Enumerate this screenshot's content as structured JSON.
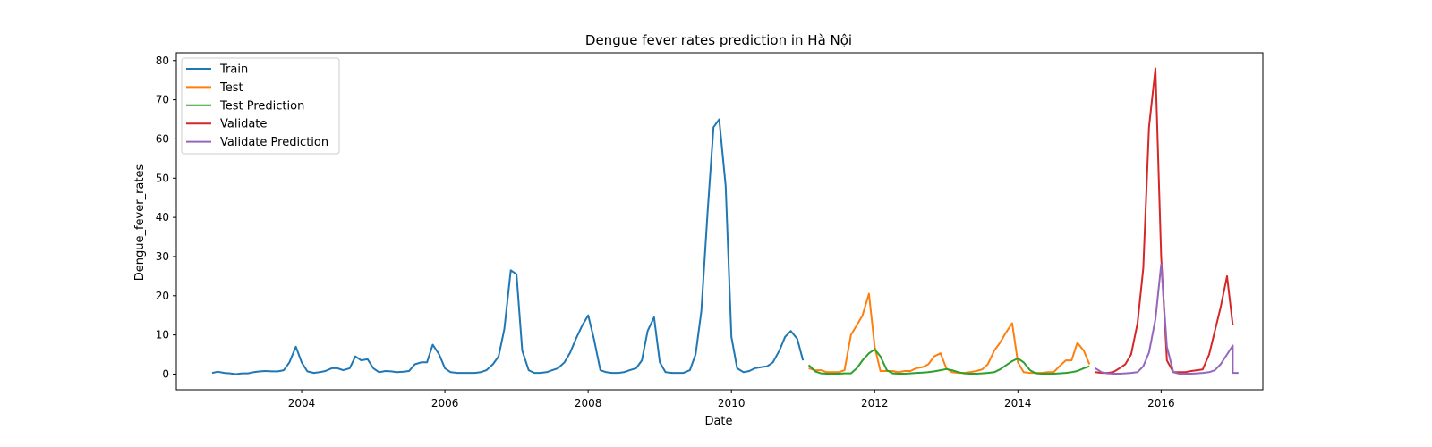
{
  "chart_data": {
    "type": "line",
    "title": "Dengue fever rates prediction in Hà Nội",
    "xlabel": "Date",
    "ylabel": "Dengue_fever_rates",
    "x_ticks": [
      "2004",
      "2006",
      "2008",
      "2010",
      "2012",
      "2014",
      "2016"
    ],
    "y_ticks": [
      0,
      10,
      20,
      30,
      40,
      50,
      60,
      70,
      80
    ],
    "xlim": [
      2002.25,
      2017.42
    ],
    "ylim": [
      -4,
      82
    ],
    "grid": false,
    "legend_position": "top-left",
    "series": [
      {
        "name": "Train",
        "color": "#1f77b4",
        "points": [
          [
            2002.75,
            0.3
          ],
          [
            2002.83,
            0.6
          ],
          [
            2002.92,
            0.3
          ],
          [
            2003.0,
            0.2
          ],
          [
            2003.08,
            0.0
          ],
          [
            2003.17,
            0.2
          ],
          [
            2003.25,
            0.2
          ],
          [
            2003.33,
            0.5
          ],
          [
            2003.42,
            0.7
          ],
          [
            2003.5,
            0.8
          ],
          [
            2003.58,
            0.7
          ],
          [
            2003.67,
            0.7
          ],
          [
            2003.75,
            1.0
          ],
          [
            2003.83,
            3.0
          ],
          [
            2003.92,
            7.0
          ],
          [
            2004.0,
            3.0
          ],
          [
            2004.08,
            0.7
          ],
          [
            2004.17,
            0.3
          ],
          [
            2004.25,
            0.5
          ],
          [
            2004.33,
            0.8
          ],
          [
            2004.42,
            1.5
          ],
          [
            2004.5,
            1.5
          ],
          [
            2004.58,
            1.0
          ],
          [
            2004.67,
            1.5
          ],
          [
            2004.75,
            4.5
          ],
          [
            2004.83,
            3.5
          ],
          [
            2004.92,
            3.8
          ],
          [
            2005.0,
            1.5
          ],
          [
            2005.08,
            0.5
          ],
          [
            2005.17,
            0.8
          ],
          [
            2005.25,
            0.7
          ],
          [
            2005.33,
            0.5
          ],
          [
            2005.42,
            0.6
          ],
          [
            2005.5,
            0.8
          ],
          [
            2005.58,
            2.5
          ],
          [
            2005.67,
            3.0
          ],
          [
            2005.75,
            3.0
          ],
          [
            2005.83,
            7.5
          ],
          [
            2005.92,
            5.0
          ],
          [
            2006.0,
            1.5
          ],
          [
            2006.08,
            0.5
          ],
          [
            2006.17,
            0.3
          ],
          [
            2006.25,
            0.3
          ],
          [
            2006.33,
            0.3
          ],
          [
            2006.42,
            0.3
          ],
          [
            2006.5,
            0.5
          ],
          [
            2006.58,
            1.0
          ],
          [
            2006.67,
            2.5
          ],
          [
            2006.75,
            4.5
          ],
          [
            2006.83,
            11.5
          ],
          [
            2006.92,
            26.5
          ],
          [
            2007.0,
            25.5
          ],
          [
            2007.08,
            6.0
          ],
          [
            2007.17,
            1.0
          ],
          [
            2007.25,
            0.3
          ],
          [
            2007.33,
            0.3
          ],
          [
            2007.42,
            0.5
          ],
          [
            2007.5,
            1.0
          ],
          [
            2007.58,
            1.5
          ],
          [
            2007.67,
            3.0
          ],
          [
            2007.75,
            5.5
          ],
          [
            2007.83,
            9.0
          ],
          [
            2007.92,
            12.5
          ],
          [
            2008.0,
            15.0
          ],
          [
            2008.08,
            9.0
          ],
          [
            2008.17,
            1.0
          ],
          [
            2008.25,
            0.5
          ],
          [
            2008.33,
            0.3
          ],
          [
            2008.42,
            0.3
          ],
          [
            2008.5,
            0.5
          ],
          [
            2008.58,
            1.0
          ],
          [
            2008.67,
            1.5
          ],
          [
            2008.75,
            3.5
          ],
          [
            2008.83,
            11.0
          ],
          [
            2008.92,
            14.5
          ],
          [
            2009.0,
            3.0
          ],
          [
            2009.08,
            0.5
          ],
          [
            2009.17,
            0.3
          ],
          [
            2009.25,
            0.3
          ],
          [
            2009.33,
            0.3
          ],
          [
            2009.42,
            1.0
          ],
          [
            2009.5,
            5.0
          ],
          [
            2009.58,
            16.0
          ],
          [
            2009.67,
            42.0
          ],
          [
            2009.75,
            63.0
          ],
          [
            2009.83,
            65.0
          ],
          [
            2009.92,
            48.0
          ],
          [
            2010.0,
            9.5
          ],
          [
            2010.08,
            1.5
          ],
          [
            2010.17,
            0.5
          ],
          [
            2010.25,
            0.8
          ],
          [
            2010.33,
            1.5
          ],
          [
            2010.42,
            1.8
          ],
          [
            2010.5,
            2.0
          ],
          [
            2010.58,
            3.0
          ],
          [
            2010.67,
            6.0
          ],
          [
            2010.75,
            9.5
          ],
          [
            2010.83,
            11.0
          ],
          [
            2010.92,
            9.0
          ],
          [
            2011.0,
            3.5
          ]
        ]
      },
      {
        "name": "Test",
        "color": "#ff7f0e",
        "points": [
          [
            2011.08,
            1.5
          ],
          [
            2011.17,
            1.0
          ],
          [
            2011.25,
            1.0
          ],
          [
            2011.33,
            0.5
          ],
          [
            2011.42,
            0.5
          ],
          [
            2011.5,
            0.5
          ],
          [
            2011.58,
            1.0
          ],
          [
            2011.67,
            10.0
          ],
          [
            2011.75,
            12.5
          ],
          [
            2011.83,
            15.0
          ],
          [
            2011.92,
            20.5
          ],
          [
            2012.0,
            7.0
          ],
          [
            2012.08,
            0.8
          ],
          [
            2012.17,
            0.8
          ],
          [
            2012.25,
            0.8
          ],
          [
            2012.33,
            0.5
          ],
          [
            2012.42,
            0.8
          ],
          [
            2012.5,
            0.8
          ],
          [
            2012.58,
            1.5
          ],
          [
            2012.67,
            1.8
          ],
          [
            2012.75,
            2.5
          ],
          [
            2012.83,
            4.5
          ],
          [
            2012.92,
            5.3
          ],
          [
            2013.0,
            1.5
          ],
          [
            2013.08,
            0.5
          ],
          [
            2013.17,
            0.3
          ],
          [
            2013.25,
            0.3
          ],
          [
            2013.33,
            0.5
          ],
          [
            2013.42,
            0.8
          ],
          [
            2013.5,
            1.2
          ],
          [
            2013.58,
            2.5
          ],
          [
            2013.67,
            6.0
          ],
          [
            2013.75,
            8.0
          ],
          [
            2013.83,
            10.5
          ],
          [
            2013.92,
            13.0
          ],
          [
            2014.0,
            3.0
          ],
          [
            2014.08,
            0.5
          ],
          [
            2014.17,
            0.3
          ],
          [
            2014.25,
            0.3
          ],
          [
            2014.33,
            0.3
          ],
          [
            2014.42,
            0.5
          ],
          [
            2014.5,
            0.5
          ],
          [
            2014.58,
            2.0
          ],
          [
            2014.67,
            3.5
          ],
          [
            2014.75,
            3.5
          ],
          [
            2014.83,
            8.0
          ],
          [
            2014.92,
            6.0
          ],
          [
            2015.0,
            2.5
          ]
        ]
      },
      {
        "name": "Test Prediction",
        "color": "#2ca02c",
        "points": [
          [
            2011.08,
            2.3
          ],
          [
            2011.17,
            0.7
          ],
          [
            2011.25,
            0.2
          ],
          [
            2011.33,
            0.1
          ],
          [
            2011.42,
            0.1
          ],
          [
            2011.5,
            0.1
          ],
          [
            2011.58,
            0.2
          ],
          [
            2011.67,
            0.2
          ],
          [
            2011.75,
            1.5
          ],
          [
            2011.83,
            3.5
          ],
          [
            2011.92,
            5.3
          ],
          [
            2012.0,
            6.3
          ],
          [
            2012.08,
            4.5
          ],
          [
            2012.17,
            1.0
          ],
          [
            2012.25,
            0.2
          ],
          [
            2012.33,
            0.1
          ],
          [
            2012.42,
            0.1
          ],
          [
            2012.5,
            0.2
          ],
          [
            2012.58,
            0.3
          ],
          [
            2012.67,
            0.4
          ],
          [
            2012.75,
            0.5
          ],
          [
            2012.83,
            0.7
          ],
          [
            2012.92,
            1.0
          ],
          [
            2013.0,
            1.3
          ],
          [
            2013.08,
            1.0
          ],
          [
            2013.17,
            0.5
          ],
          [
            2013.25,
            0.2
          ],
          [
            2013.33,
            0.1
          ],
          [
            2013.42,
            0.1
          ],
          [
            2013.5,
            0.2
          ],
          [
            2013.58,
            0.3
          ],
          [
            2013.67,
            0.5
          ],
          [
            2013.75,
            1.2
          ],
          [
            2013.83,
            2.2
          ],
          [
            2013.92,
            3.3
          ],
          [
            2014.0,
            4.0
          ],
          [
            2014.08,
            3.0
          ],
          [
            2014.17,
            1.0
          ],
          [
            2014.25,
            0.2
          ],
          [
            2014.33,
            0.1
          ],
          [
            2014.42,
            0.1
          ],
          [
            2014.5,
            0.1
          ],
          [
            2014.58,
            0.2
          ],
          [
            2014.67,
            0.3
          ],
          [
            2014.75,
            0.5
          ],
          [
            2014.83,
            0.8
          ],
          [
            2014.92,
            1.5
          ],
          [
            2015.0,
            2.0
          ]
        ]
      },
      {
        "name": "Validate",
        "color": "#d62728",
        "points": [
          [
            2015.08,
            0.5
          ],
          [
            2015.17,
            0.3
          ],
          [
            2015.25,
            0.3
          ],
          [
            2015.33,
            0.5
          ],
          [
            2015.42,
            1.5
          ],
          [
            2015.5,
            2.5
          ],
          [
            2015.58,
            5.0
          ],
          [
            2015.67,
            13.0
          ],
          [
            2015.75,
            27.0
          ],
          [
            2015.83,
            63.0
          ],
          [
            2015.92,
            78.0
          ],
          [
            2016.0,
            30.0
          ],
          [
            2016.08,
            3.5
          ],
          [
            2016.17,
            0.5
          ],
          [
            2016.25,
            0.5
          ],
          [
            2016.33,
            0.5
          ],
          [
            2016.42,
            0.8
          ],
          [
            2016.5,
            1.0
          ],
          [
            2016.58,
            1.2
          ],
          [
            2016.67,
            5.0
          ],
          [
            2016.75,
            11.0
          ],
          [
            2016.83,
            17.0
          ],
          [
            2016.92,
            25.0
          ],
          [
            2017.0,
            12.5
          ]
        ]
      },
      {
        "name": "Validate Prediction",
        "color": "#9467bd",
        "points": [
          [
            2015.08,
            1.5
          ],
          [
            2015.17,
            0.5
          ],
          [
            2015.25,
            0.2
          ],
          [
            2015.33,
            0.1
          ],
          [
            2015.42,
            0.1
          ],
          [
            2015.5,
            0.2
          ],
          [
            2015.58,
            0.3
          ],
          [
            2015.67,
            0.5
          ],
          [
            2015.75,
            2.0
          ],
          [
            2015.83,
            5.5
          ],
          [
            2015.92,
            14.0
          ],
          [
            2016.0,
            28.0
          ],
          [
            2016.08,
            7.0
          ],
          [
            2016.17,
            0.5
          ],
          [
            2016.25,
            0.1
          ],
          [
            2016.33,
            0.1
          ],
          [
            2016.42,
            0.1
          ],
          [
            2016.5,
            0.2
          ],
          [
            2016.58,
            0.3
          ],
          [
            2016.67,
            0.5
          ],
          [
            2016.75,
            1.0
          ],
          [
            2016.83,
            2.5
          ],
          [
            2016.92,
            5.0
          ],
          [
            2017.0,
            7.3
          ],
          [
            2017.0,
            0.3
          ],
          [
            2017.08,
            0.3
          ]
        ]
      }
    ]
  }
}
